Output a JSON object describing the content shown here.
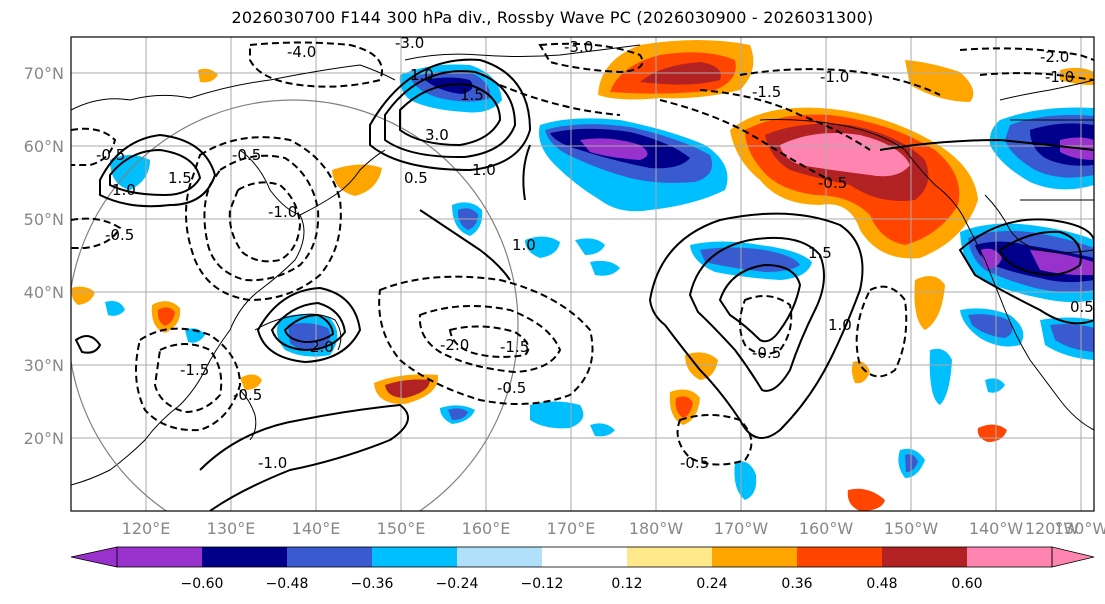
{
  "title": "2026030700 F144 300 hPa div., Rossby Wave PC (2026030900 - 2026031300)",
  "lat_labels": [
    "70°N",
    "60°N",
    "50°N",
    "40°N",
    "30°N",
    "20°N"
  ],
  "lon_labels": [
    "120°E",
    "130°E",
    "140°E",
    "150°E",
    "160°E",
    "170°E",
    "180°W",
    "170°W",
    "160°W",
    "150°W",
    "140°W",
    "130°W",
    "120°W"
  ],
  "colorbar": {
    "colors": [
      "#9932cc",
      "#00008b",
      "#3a5bd0",
      "#00bfff",
      "#b0e0fa",
      "#ffffff",
      "#ffe88a",
      "#ffa500",
      "#ff4500",
      "#b22222",
      "#ff85b0"
    ],
    "ticks": [
      "−0.60",
      "−0.48",
      "−0.36",
      "−0.24",
      "−0.12",
      "0.12",
      "0.24",
      "0.36",
      "0.48",
      "0.60"
    ]
  },
  "contour_labels": [
    {
      "text": "-4.0"
    },
    {
      "text": "-3.0"
    },
    {
      "text": "-3.0"
    },
    {
      "text": "-2.0"
    },
    {
      "text": "-1.0"
    },
    {
      "text": "-1.0"
    },
    {
      "text": "-1.5"
    },
    {
      "text": "-1.0"
    },
    {
      "text": "-1.5"
    },
    {
      "text": "-1.5"
    },
    {
      "text": "-0.5"
    },
    {
      "text": "-0.5"
    },
    {
      "text": "-0.5"
    },
    {
      "text": "-0.5"
    },
    {
      "text": "-0.5"
    },
    {
      "text": "-0.5"
    },
    {
      "text": "-0.5"
    },
    {
      "text": "1.0"
    },
    {
      "text": "1.0"
    },
    {
      "text": "1.5"
    },
    {
      "text": "1.5"
    },
    {
      "text": "1.5"
    },
    {
      "text": "1.0"
    },
    {
      "text": "1.0"
    },
    {
      "text": "0.5"
    },
    {
      "text": "2.0"
    },
    {
      "text": "3.0"
    },
    {
      "text": "1.0"
    },
    {
      "text": "-0.5"
    },
    {
      "text": "0.5"
    },
    {
      "text": "-2.0"
    },
    {
      "text": "-1.0"
    }
  ]
}
